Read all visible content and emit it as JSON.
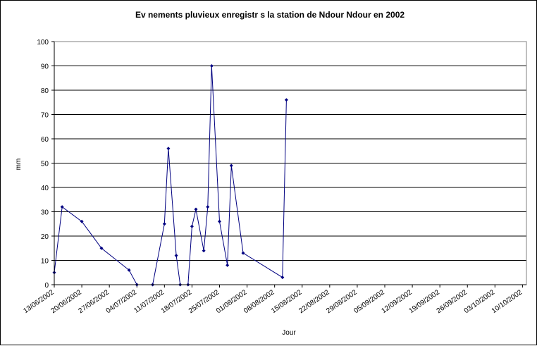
{
  "chart_data": {
    "type": "line",
    "title": "Ev   nements pluvieux enregistr   s     la station de Ndour Ndour en 2002",
    "xlabel": "Jour",
    "ylabel": "mm",
    "ylim": [
      0,
      100
    ],
    "yticks": [
      "0",
      "10",
      "20",
      "30",
      "40",
      "50",
      "60",
      "70",
      "80",
      "90",
      "100"
    ],
    "xlim": [
      "2002-06-13",
      "2002-10-11"
    ],
    "xtick_labels": [
      "13/06/2002",
      "20/06/2002",
      "27/06/2002",
      "04/07/2002",
      "11/07/2002",
      "18/07/2002",
      "25/07/2002",
      "01/08/2002",
      "08/08/2002",
      "15/08/2002",
      "22/08/2002",
      "29/08/2002",
      "05/09/2002",
      "12/09/2002",
      "19/09/2002",
      "26/09/2002",
      "03/10/2002",
      "10/10/2002"
    ],
    "grid": true,
    "line_color": "#000080",
    "series": [
      {
        "points": [
          {
            "x": "2002-06-13",
            "y": 5
          },
          {
            "x": "2002-06-15",
            "y": 32
          },
          {
            "x": "2002-06-20",
            "y": 26
          },
          {
            "x": "2002-06-25",
            "y": 15
          },
          {
            "x": "2002-07-02",
            "y": 6
          },
          {
            "x": "2002-07-04",
            "y": 0
          },
          {
            "x": "2002-07-08",
            "y": 0
          },
          {
            "x": "2002-07-11",
            "y": 25
          },
          {
            "x": "2002-07-12",
            "y": 56
          },
          {
            "x": "2002-07-14",
            "y": 12
          },
          {
            "x": "2002-07-15",
            "y": 0
          },
          {
            "x": "2002-07-17",
            "y": 0
          },
          {
            "x": "2002-07-18",
            "y": 24
          },
          {
            "x": "2002-07-19",
            "y": 31
          },
          {
            "x": "2002-07-21",
            "y": 14
          },
          {
            "x": "2002-07-22",
            "y": 32
          },
          {
            "x": "2002-07-23",
            "y": 90
          },
          {
            "x": "2002-07-25",
            "y": 26
          },
          {
            "x": "2002-07-27",
            "y": 8
          },
          {
            "x": "2002-07-28",
            "y": 49
          },
          {
            "x": "2002-07-31",
            "y": 13
          },
          {
            "x": "2002-08-10",
            "y": 3
          },
          {
            "x": "2002-08-11",
            "y": 76
          }
        ]
      }
    ]
  }
}
